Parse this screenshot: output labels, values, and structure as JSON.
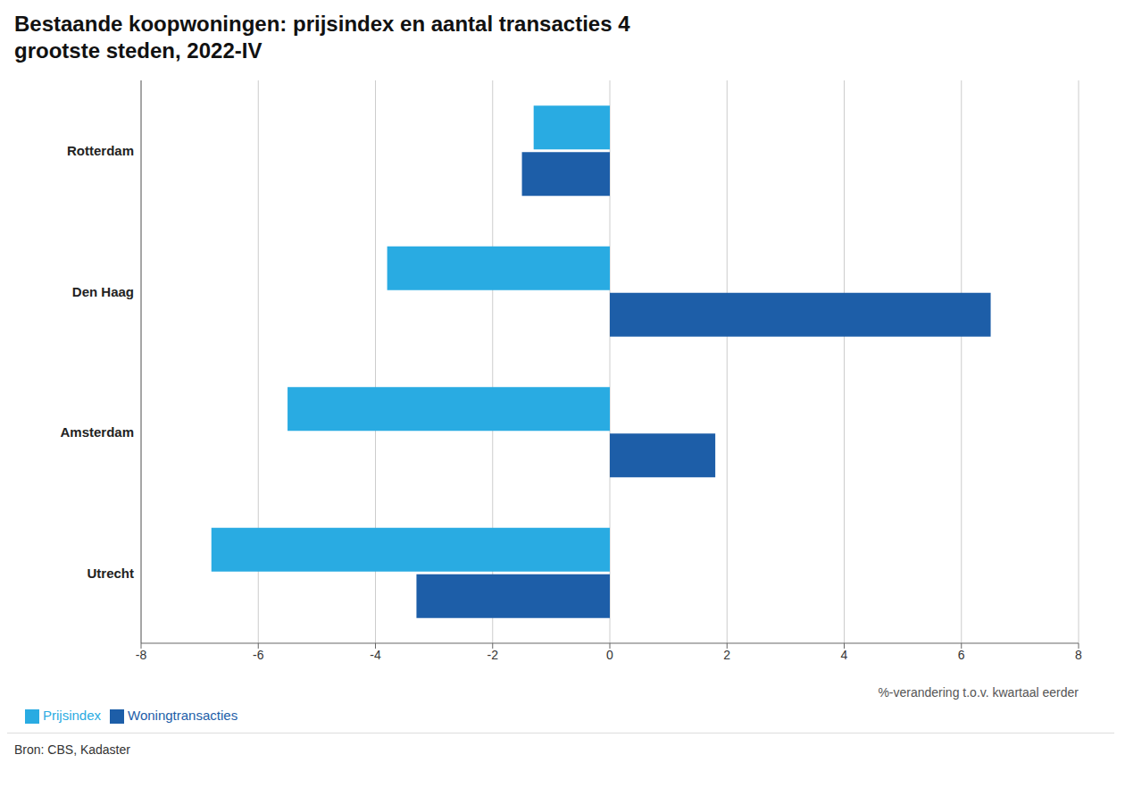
{
  "chart_data": {
    "type": "bar",
    "orientation": "horizontal",
    "title": "Bestaande koopwoningen: prijsindex en aantal transacties 4\ngrootste steden, 2022-IV",
    "categories": [
      "Rotterdam",
      "Den Haag",
      "Amsterdam",
      "Utrecht"
    ],
    "series": [
      {
        "name": "Prijsindex",
        "color": "#29ABE2",
        "values": [
          -1.3,
          -3.8,
          -5.5,
          -6.8
        ]
      },
      {
        "name": "Woningtransacties",
        "color": "#1D5EA8",
        "values": [
          -1.5,
          6.5,
          1.8,
          -3.3
        ]
      }
    ],
    "xlabel": "%-verandering t.o.v. kwartaal eerder",
    "xlim": [
      -8,
      8
    ],
    "xticks": [
      -8,
      -6,
      -4,
      -2,
      0,
      2,
      4,
      6,
      8
    ],
    "grid": true,
    "legend": "bottom",
    "annotations": [
      "Bron: CBS, Kadaster"
    ]
  }
}
